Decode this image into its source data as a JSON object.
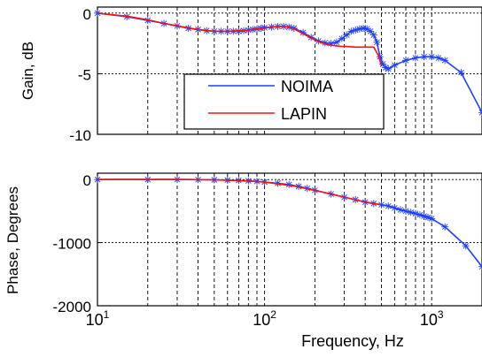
{
  "chart_data": [
    {
      "type": "line",
      "ylabel": "Gain, dB",
      "xscale": "log",
      "xlim": [
        10,
        2000
      ],
      "ylim": [
        -10,
        0.5
      ],
      "yticks": [
        0,
        -5,
        -10
      ],
      "ytick_labels": [
        "0",
        "-5",
        "-10"
      ],
      "grid": true,
      "legend": {
        "position": "center-bottom",
        "entries": [
          "NOIMA",
          "LAPIN"
        ]
      },
      "series": [
        {
          "name": "NOIMA",
          "color": "#1f3fff",
          "markers": true,
          "x": [
            10,
            15,
            20,
            25,
            30,
            35,
            40,
            45,
            50,
            55,
            60,
            65,
            70,
            75,
            80,
            85,
            90,
            95,
            100,
            110,
            120,
            130,
            140,
            150,
            170,
            190,
            210,
            230,
            250,
            270,
            290,
            310,
            330,
            350,
            370,
            390,
            410,
            430,
            450,
            470,
            490,
            510,
            530,
            550,
            600,
            700,
            800,
            900,
            1000,
            1100,
            1200,
            1500,
            2000
          ],
          "y": [
            0,
            -0.3,
            -0.6,
            -0.85,
            -1.05,
            -1.25,
            -1.35,
            -1.45,
            -1.5,
            -1.5,
            -1.5,
            -1.5,
            -1.5,
            -1.45,
            -1.4,
            -1.35,
            -1.3,
            -1.25,
            -1.2,
            -1.15,
            -1.1,
            -1.1,
            -1.15,
            -1.25,
            -1.6,
            -2.0,
            -2.3,
            -2.45,
            -2.5,
            -2.4,
            -2.1,
            -1.8,
            -1.5,
            -1.4,
            -1.3,
            -1.25,
            -1.3,
            -1.5,
            -1.8,
            -2.4,
            -3.6,
            -4.2,
            -4.5,
            -4.6,
            -4.3,
            -3.9,
            -3.7,
            -3.6,
            -3.6,
            -3.7,
            -3.9,
            -4.9,
            -8.2
          ]
        },
        {
          "name": "LAPIN",
          "color": "#ff1010",
          "markers": false,
          "x": [
            10,
            15,
            20,
            25,
            30,
            40,
            50,
            60,
            70,
            80,
            90,
            100,
            110,
            120,
            130,
            140,
            150,
            170,
            190,
            210,
            230,
            250,
            270,
            290,
            310,
            350,
            400,
            450,
            480,
            500
          ],
          "y": [
            0,
            -0.25,
            -0.55,
            -0.85,
            -1.05,
            -1.35,
            -1.5,
            -1.5,
            -1.45,
            -1.4,
            -1.3,
            -1.25,
            -1.15,
            -1.1,
            -1.1,
            -1.15,
            -1.3,
            -1.7,
            -2.05,
            -2.35,
            -2.55,
            -2.65,
            -2.7,
            -2.75,
            -2.75,
            -2.8,
            -2.8,
            -2.8,
            -3.5,
            -4.3
          ]
        }
      ]
    },
    {
      "type": "line",
      "xlabel": "Frequency, Hz",
      "ylabel": "Phase, Degrees",
      "xscale": "log",
      "xlim": [
        10,
        2000
      ],
      "ylim": [
        -2000,
        100
      ],
      "yticks": [
        0,
        -1000,
        -2000
      ],
      "ytick_labels": [
        "0",
        "-1000",
        "-2000"
      ],
      "xtick_base": "10",
      "xtick_exponents": [
        "1",
        "2",
        "3"
      ],
      "grid": true,
      "series": [
        {
          "name": "NOIMA",
          "color": "#1f3fff",
          "markers": true,
          "x": [
            10,
            20,
            30,
            40,
            50,
            60,
            70,
            80,
            90,
            100,
            120,
            140,
            160,
            180,
            200,
            250,
            300,
            350,
            400,
            450,
            500,
            550,
            600,
            650,
            700,
            750,
            800,
            850,
            900,
            950,
            1000,
            1200,
            1600,
            2000
          ],
          "y": [
            0,
            0,
            0,
            -2,
            -5,
            -10,
            -15,
            -22,
            -30,
            -40,
            -60,
            -80,
            -110,
            -140,
            -170,
            -230,
            -280,
            -320,
            -360,
            -380,
            -400,
            -420,
            -450,
            -480,
            -500,
            -520,
            -540,
            -560,
            -580,
            -600,
            -620,
            -750,
            -1050,
            -1380
          ]
        },
        {
          "name": "LAPIN",
          "color": "#ff1010",
          "markers": false,
          "x": [
            10,
            20,
            30,
            40,
            50,
            60,
            80,
            100,
            150,
            200,
            250,
            300,
            350,
            400,
            450,
            500
          ],
          "y": [
            0,
            0,
            0,
            -2,
            -6,
            -12,
            -25,
            -42,
            -105,
            -172,
            -230,
            -280,
            -320,
            -355,
            -380,
            -400
          ]
        }
      ]
    }
  ]
}
